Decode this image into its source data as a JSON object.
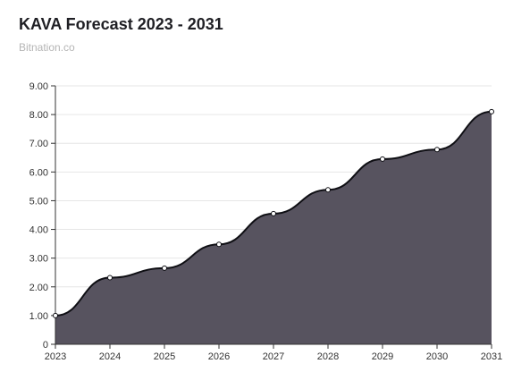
{
  "header": {
    "title": "KAVA Forecast 2023 - 2031",
    "source": "Bitnation.co"
  },
  "colors": {
    "area_fill": "#57535f",
    "line": "#0f0f14",
    "grid": "#e6e6e6",
    "axis": "#333333",
    "point_fill": "#ffffff"
  },
  "chart_data": {
    "type": "area",
    "title": "KAVA Forecast 2023 - 2031",
    "subtitle": "Bitnation.co",
    "xlabel": "",
    "ylabel": "",
    "x": [
      "2023",
      "2024",
      "2025",
      "2026",
      "2027",
      "2028",
      "2029",
      "2030",
      "2031"
    ],
    "values": [
      1.0,
      2.32,
      2.65,
      3.48,
      4.55,
      5.38,
      6.45,
      6.78,
      8.1
    ],
    "yticks": [
      "0",
      "1.00",
      "2.00",
      "3.00",
      "4.00",
      "5.00",
      "6.00",
      "7.00",
      "8.00",
      "9.00"
    ],
    "ylim": [
      0,
      9
    ],
    "grid": true,
    "legend": "none"
  }
}
